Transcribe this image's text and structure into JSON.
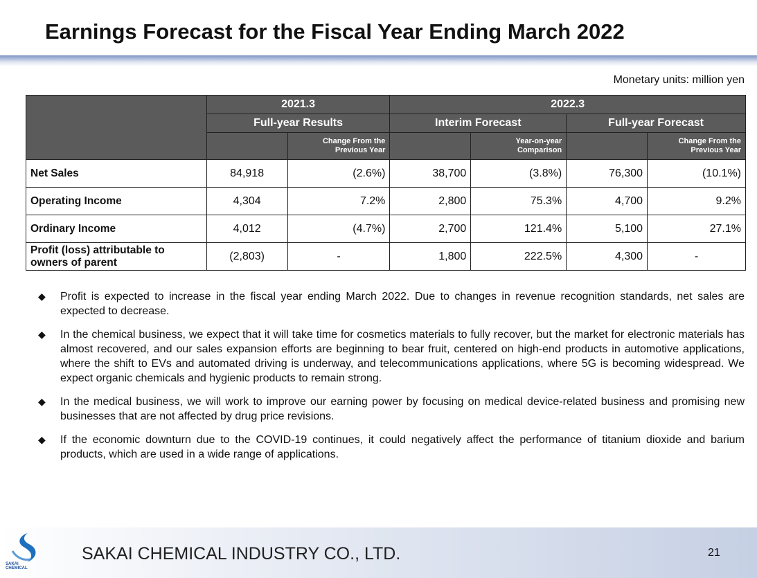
{
  "header": {
    "title": "Earnings Forecast for the Fiscal Year Ending March 2022",
    "units": "Monetary units: million yen"
  },
  "table": {
    "periods": [
      "2021.3",
      "2022.3"
    ],
    "groups": [
      "Full-year Results",
      "Interim Forecast",
      "Full-year Forecast"
    ],
    "subheaders": [
      "Change From the Previous Year",
      "Year-on-year Comparison",
      "Change From the Previous Year"
    ],
    "rows": [
      {
        "label": "Net Sales",
        "values": [
          "84,918",
          "(2.6%)",
          "38,700",
          "(3.8%)",
          "76,300",
          "(10.1%)"
        ]
      },
      {
        "label": "Operating Income",
        "values": [
          "4,304",
          "7.2%",
          "2,800",
          "75.3%",
          "4,700",
          "9.2%"
        ]
      },
      {
        "label": "Ordinary Income",
        "values": [
          "4,012",
          "(4.7%)",
          "2,700",
          "121.4%",
          "5,100",
          "27.1%"
        ]
      },
      {
        "label": "Profit (loss) attributable to owners of parent",
        "values": [
          "(2,803)",
          "-",
          "1,800",
          "222.5%",
          "4,300",
          "-"
        ]
      }
    ]
  },
  "bullets": [
    "Profit is expected to increase in the fiscal year ending March 2022. Due to changes in revenue recognition standards, net sales are expected to decrease.",
    "In the chemical business, we expect that it will take time for cosmetics materials to fully recover, but the market for electronic materials has almost recovered, and our sales expansion efforts are beginning to bear fruit, centered on high-end products in automotive applications, where the shift to EVs and automated driving is underway, and telecommunications applications, where 5G is becoming widespread. We expect organic chemicals and hygienic products to remain strong.",
    "In the medical business, we will work to improve our earning power by focusing on medical device-related business and promising new businesses that are not affected by drug price revisions.",
    "If the economic downturn due to the COVID-19 continues, it could negatively affect the performance of titanium dioxide and barium products, which are used in a wide range of applications."
  ],
  "footer": {
    "logo_text": "SAKAI CHEMICAL",
    "company": "SAKAI CHEMICAL INDUSTRY CO., LTD.",
    "page": 21
  }
}
